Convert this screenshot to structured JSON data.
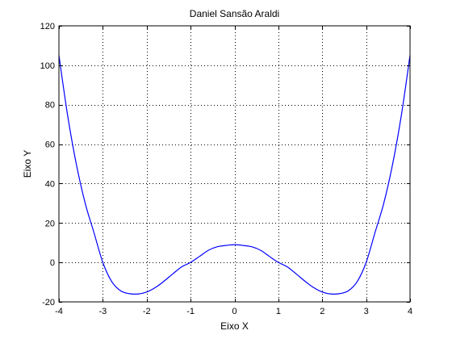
{
  "chart_data": {
    "type": "line",
    "title": "Daniel Sansão Araldi",
    "xlabel": "Eixo X",
    "ylabel": "Eixo Y",
    "xlim": [
      -4,
      4
    ],
    "ylim": [
      -20,
      120
    ],
    "xticks": [
      -4,
      -3,
      -2,
      -1,
      0,
      1,
      2,
      3,
      4
    ],
    "yticks": [
      -20,
      0,
      20,
      40,
      60,
      80,
      100,
      120
    ],
    "xtick_labels": [
      "-4",
      "-3",
      "-2",
      "-1",
      "0",
      "1",
      "2",
      "3",
      "4"
    ],
    "ytick_labels": [
      "-20",
      "0",
      "20",
      "40",
      "60",
      "80",
      "100",
      "120"
    ],
    "grid": true,
    "line_color": "#0000ff",
    "series": [
      {
        "x": [
          -4,
          -3.8,
          -3.6,
          -3.4,
          -3.2,
          -3,
          -2.8,
          -2.6,
          -2.4,
          -2.2,
          -2,
          -1.8,
          -1.6,
          -1.4,
          -1.2,
          -1,
          -0.8,
          -0.6,
          -0.4,
          -0.2,
          0,
          0.2,
          0.4,
          0.6,
          0.8,
          1,
          1.2,
          1.4,
          1.6,
          1.8,
          2,
          2.2,
          2.4,
          2.6,
          2.8,
          3,
          3.2,
          3.4,
          3.6,
          3.8,
          4
        ],
        "y": [
          105,
          74.3,
          49.5,
          29.9,
          15.0,
          0,
          -9.6,
          -14.3,
          -15.8,
          -16.0,
          -15.0,
          -12.7,
          -9.4,
          -5.7,
          -2.2,
          0,
          3.0,
          6.1,
          7.9,
          8.6,
          9,
          8.6,
          7.9,
          6.1,
          3.0,
          0,
          -2.2,
          -5.7,
          -9.4,
          -12.7,
          -15.0,
          -16.0,
          -15.8,
          -14.3,
          -9.6,
          0,
          15.0,
          29.9,
          49.5,
          74.3,
          105
        ]
      }
    ]
  }
}
